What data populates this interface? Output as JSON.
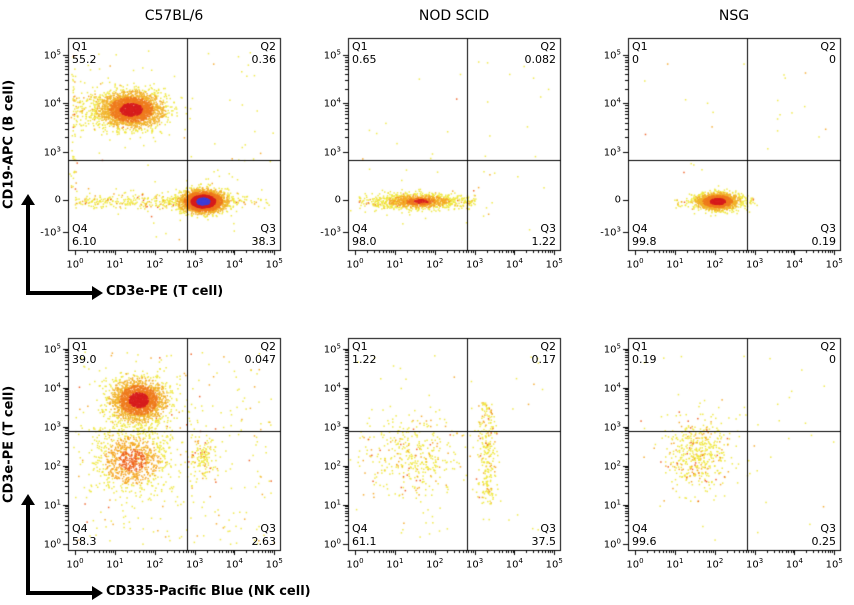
{
  "chart_data": {
    "type": "scatter",
    "description": "Flow cytometry quadrant dot plots, log axes, 2 rows x 3 mouse strains",
    "column_titles": [
      "C57BL/6",
      "NOD SCID",
      "NSG"
    ],
    "rows": [
      {
        "ylabel": "CD19-APC (B cell)",
        "xlabel": "CD3e-PE (T cell)",
        "gate": {
          "x": 0.561,
          "y": 0.575
        },
        "x_ticks": [
          {
            "f": 0.033,
            "label": "10^0",
            "minors": true
          },
          {
            "f": 0.221,
            "label": "10^1",
            "minors": true
          },
          {
            "f": 0.409,
            "label": "10^2",
            "minors": true
          },
          {
            "f": 0.597,
            "label": "10^3",
            "minors": true
          },
          {
            "f": 0.785,
            "label": "10^4",
            "minors": true
          },
          {
            "f": 0.973,
            "label": "10^5",
            "minors": false
          }
        ],
        "y_ticks": [
          {
            "f": 0.08,
            "label": "10^5",
            "minors": true
          },
          {
            "f": 0.307,
            "label": "10^4",
            "minors": true
          },
          {
            "f": 0.538,
            "label": "10^3",
            "minors": false
          },
          {
            "f": 0.764,
            "label": "0",
            "minors": false
          },
          {
            "f": 0.915,
            "label": "-10^3",
            "minors": false
          }
        ]
      },
      {
        "ylabel": "CD3e-PE (T cell)",
        "xlabel": "CD335-Pacific Blue (NK cell)",
        "gate": {
          "x": 0.561,
          "y": 0.44
        },
        "x_ticks": [
          {
            "f": 0.033,
            "label": "10^0",
            "minors": true
          },
          {
            "f": 0.221,
            "label": "10^1",
            "minors": true
          },
          {
            "f": 0.409,
            "label": "10^2",
            "minors": true
          },
          {
            "f": 0.597,
            "label": "10^3",
            "minors": true
          },
          {
            "f": 0.785,
            "label": "10^4",
            "minors": true
          },
          {
            "f": 0.973,
            "label": "10^5",
            "minors": false
          }
        ],
        "y_ticks": [
          {
            "f": 0.05,
            "label": "10^5",
            "minors": true
          },
          {
            "f": 0.234,
            "label": "10^4",
            "minors": true
          },
          {
            "f": 0.418,
            "label": "10^3",
            "minors": true
          },
          {
            "f": 0.602,
            "label": "10^2",
            "minors": true
          },
          {
            "f": 0.786,
            "label": "10^1",
            "minors": true
          },
          {
            "f": 0.97,
            "label": "10^0",
            "minors": false
          }
        ]
      }
    ],
    "palettes": {
      "hot": {
        "stops": [
          [
            0.7,
            "#d81f1f"
          ],
          [
            1.4,
            "#f07c1e"
          ],
          [
            2.2,
            "#f2b32a"
          ],
          [
            9,
            "#f0e83c"
          ]
        ]
      },
      "hotblue": {
        "stops": [
          [
            0.6,
            "#4040d8"
          ],
          [
            1.15,
            "#d81f1f"
          ],
          [
            1.8,
            "#f07c1e"
          ],
          [
            2.5,
            "#f2b32a"
          ],
          [
            9,
            "#f0e83c"
          ]
        ]
      },
      "warm": {
        "stops": [
          [
            0.7,
            "#f0641c"
          ],
          [
            1.5,
            "#f5a623"
          ],
          [
            9,
            "#f0e83c"
          ]
        ]
      },
      "sparse": {
        "mode": "random",
        "colors": [
          "#f0e83c",
          "#f5a623",
          "#ef5a1c"
        ],
        "w": [
          0.8,
          0.15,
          0.05
        ]
      }
    },
    "panels": [
      {
        "row": 0,
        "col": 0,
        "strain": "C57BL/6",
        "quadrants": {
          "q1": {
            "label": "Q1",
            "value": "55.2"
          },
          "q2": {
            "label": "Q2",
            "value": "0.36"
          },
          "q3": {
            "label": "Q3",
            "value": "38.3"
          },
          "q4": {
            "label": "Q4",
            "value": "6.10"
          }
        },
        "clusters": [
          {
            "type": "box",
            "x0": 0.02,
            "x1": 0.97,
            "y0": 0.05,
            "y1": 0.95,
            "n": 90,
            "palette": "sparse"
          },
          {
            "type": "band",
            "x0": 0.02,
            "x1": 0.3,
            "cy": 0.335,
            "sy": 0.05,
            "n": 240,
            "palette": "sparse"
          },
          {
            "type": "gauss",
            "cx": 0.295,
            "cy": 0.335,
            "sx": 0.075,
            "sy": 0.042,
            "n": 2400,
            "palette": "hot"
          },
          {
            "type": "band",
            "x0": 0.03,
            "x1": 0.56,
            "cy": 0.768,
            "sy": 0.017,
            "n": 280,
            "palette": "sparse"
          },
          {
            "type": "band",
            "x0": 0.72,
            "x1": 0.95,
            "cy": 0.768,
            "sy": 0.014,
            "n": 50,
            "palette": "sparse"
          },
          {
            "type": "gauss",
            "cx": 0.635,
            "cy": 0.768,
            "sx": 0.05,
            "sy": 0.026,
            "n": 2800,
            "palette": "hotblue"
          },
          {
            "type": "vband",
            "cx": 0.025,
            "sx": 0.008,
            "y0": 0.08,
            "y1": 0.72,
            "n": 60,
            "palette": "sparse"
          }
        ]
      },
      {
        "row": 0,
        "col": 1,
        "strain": "NOD SCID",
        "quadrants": {
          "q1": {
            "label": "Q1",
            "value": "0.65"
          },
          "q2": {
            "label": "Q2",
            "value": "0.082"
          },
          "q3": {
            "label": "Q3",
            "value": "1.22"
          },
          "q4": {
            "label": "Q4",
            "value": "98.0"
          }
        },
        "clusters": [
          {
            "type": "box",
            "x0": 0.03,
            "x1": 0.95,
            "y0": 0.1,
            "y1": 0.92,
            "n": 40,
            "palette": "sparse"
          },
          {
            "type": "band",
            "x0": 0.05,
            "x1": 0.6,
            "cy": 0.768,
            "sy": 0.018,
            "n": 320,
            "palette": "sparse"
          },
          {
            "type": "gauss",
            "cx": 0.33,
            "cy": 0.768,
            "sx": 0.1,
            "sy": 0.02,
            "n": 700,
            "palette": "warm"
          },
          {
            "type": "gauss",
            "cx": 0.34,
            "cy": 0.768,
            "sx": 0.05,
            "sy": 0.013,
            "n": 150,
            "palette": "hot"
          }
        ]
      },
      {
        "row": 0,
        "col": 2,
        "strain": "NSG",
        "quadrants": {
          "q1": {
            "label": "Q1",
            "value": "0"
          },
          "q2": {
            "label": "Q2",
            "value": "0"
          },
          "q3": {
            "label": "Q3",
            "value": "0.19"
          },
          "q4": {
            "label": "Q4",
            "value": "99.8"
          }
        },
        "clusters": [
          {
            "type": "box",
            "x0": 0.03,
            "x1": 0.95,
            "y0": 0.1,
            "y1": 0.92,
            "n": 25,
            "palette": "sparse"
          },
          {
            "type": "band",
            "x0": 0.22,
            "x1": 0.62,
            "cy": 0.768,
            "sy": 0.015,
            "n": 120,
            "palette": "sparse"
          },
          {
            "type": "gauss",
            "cx": 0.42,
            "cy": 0.768,
            "sx": 0.05,
            "sy": 0.02,
            "n": 1500,
            "palette": "hot"
          }
        ]
      },
      {
        "row": 1,
        "col": 0,
        "strain": "C57BL/6",
        "quadrants": {
          "q1": {
            "label": "Q1",
            "value": "39.0"
          },
          "q2": {
            "label": "Q2",
            "value": "0.047"
          },
          "q3": {
            "label": "Q3",
            "value": "2.63"
          },
          "q4": {
            "label": "Q4",
            "value": "58.3"
          }
        },
        "clusters": [
          {
            "type": "box",
            "x0": 0.03,
            "x1": 0.97,
            "y0": 0.06,
            "y1": 0.97,
            "n": 260,
            "palette": "sparse"
          },
          {
            "type": "gauss",
            "cx": 0.33,
            "cy": 0.43,
            "sx": 0.12,
            "sy": 0.1,
            "n": 180,
            "palette": "sparse"
          },
          {
            "type": "gauss",
            "cx": 0.3,
            "cy": 0.575,
            "sx": 0.09,
            "sy": 0.075,
            "n": 850,
            "palette": "warm"
          },
          {
            "type": "gauss",
            "cx": 0.33,
            "cy": 0.29,
            "sx": 0.065,
            "sy": 0.05,
            "n": 2000,
            "palette": "hot"
          },
          {
            "type": "gauss",
            "cx": 0.63,
            "cy": 0.56,
            "sx": 0.03,
            "sy": 0.055,
            "n": 140,
            "palette": "sparse"
          }
        ]
      },
      {
        "row": 1,
        "col": 1,
        "strain": "NOD SCID",
        "quadrants": {
          "q1": {
            "label": "Q1",
            "value": "1.22"
          },
          "q2": {
            "label": "Q2",
            "value": "0.17"
          },
          "q3": {
            "label": "Q3",
            "value": "37.5"
          },
          "q4": {
            "label": "Q4",
            "value": "61.1"
          }
        },
        "clusters": [
          {
            "type": "box",
            "x0": 0.03,
            "x1": 0.97,
            "y0": 0.08,
            "y1": 0.95,
            "n": 60,
            "palette": "sparse"
          },
          {
            "type": "gauss",
            "cx": 0.3,
            "cy": 0.56,
            "sx": 0.11,
            "sy": 0.1,
            "n": 380,
            "palette": "sparse"
          },
          {
            "type": "vband",
            "cx": 0.655,
            "sx": 0.022,
            "y0": 0.3,
            "y1": 0.78,
            "n": 260,
            "palette": "sparse"
          }
        ]
      },
      {
        "row": 1,
        "col": 2,
        "strain": "NSG",
        "quadrants": {
          "q1": {
            "label": "Q1",
            "value": "0.19"
          },
          "q2": {
            "label": "Q2",
            "value": "0"
          },
          "q3": {
            "label": "Q3",
            "value": "0.25"
          },
          "q4": {
            "label": "Q4",
            "value": "99.6"
          }
        },
        "clusters": [
          {
            "type": "box",
            "x0": 0.03,
            "x1": 0.97,
            "y0": 0.08,
            "y1": 0.95,
            "n": 35,
            "palette": "sparse"
          },
          {
            "type": "gauss",
            "cx": 0.33,
            "cy": 0.55,
            "sx": 0.08,
            "sy": 0.085,
            "n": 480,
            "palette": "sparse"
          }
        ]
      }
    ]
  }
}
